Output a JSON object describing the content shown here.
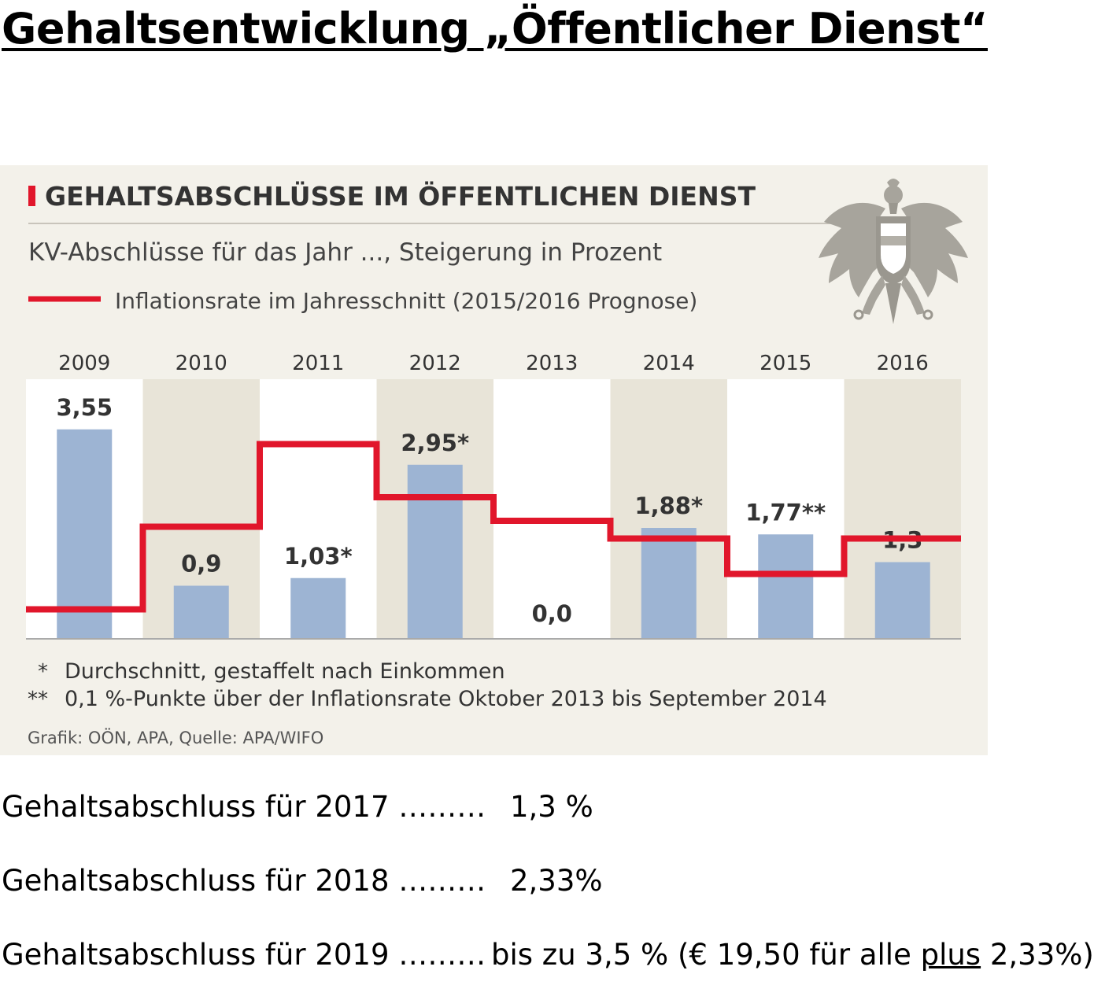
{
  "page": {
    "title": "Gehaltsentwicklung „Öffentlicher Dienst“"
  },
  "chart_data": {
    "type": "bar",
    "title": "GEHALTSABSCHLÜSSE IM ÖFFENTLICHEN DIENST",
    "subtitle": "KV-Abschlüsse für das Jahr ..., Steigerung in Prozent",
    "legend_line": "Inflationsrate im Jahresschnitt (2015/2016 Prognose)",
    "categories": [
      "2009",
      "2010",
      "2011",
      "2012",
      "2013",
      "2014",
      "2015",
      "2016"
    ],
    "values": [
      3.55,
      0.9,
      1.03,
      2.95,
      0.0,
      1.88,
      1.77,
      1.3
    ],
    "value_labels": [
      "3,55",
      "0,9",
      "1,03*",
      "2,95*",
      "0,0",
      "1,88*",
      "1,77**",
      "1,3"
    ],
    "inflation": [
      0.5,
      1.9,
      3.3,
      2.4,
      2.0,
      1.7,
      1.1,
      1.7
    ],
    "ylim": [
      0,
      4.4
    ],
    "footnotes": [
      {
        "mark": "*",
        "text": "Durchschnitt, gestaffelt nach Einkommen"
      },
      {
        "mark": "**",
        "text": "0,1 %-Punkte über der Inflationsrate Oktober 2013 bis September 2014"
      }
    ],
    "source": "Grafik: OÖN, APA, Quelle: APA/WIFO",
    "colors": {
      "bar": "#9db4d3",
      "inflation_line": "#e1162b",
      "band_dark": "#e8e4d8",
      "band_light": "#ffffff",
      "panel": "#f3f1ea",
      "accent_block": "#e1162b",
      "text": "#333333"
    },
    "icon": "austrian-eagle-coat-of-arms-icon"
  },
  "agreements": [
    {
      "label": "Gehaltsabschluss für 2017 ………",
      "value": "1,3 %"
    },
    {
      "label": "Gehaltsabschluss für 2018 ………",
      "value": "2,33%"
    },
    {
      "label": "Gehaltsabschluss für 2019 ………",
      "value_pre": "bis zu 3,5 % (€ 19,50 für alle ",
      "value_emph": "plus",
      "value_post": " 2,33%)"
    }
  ]
}
